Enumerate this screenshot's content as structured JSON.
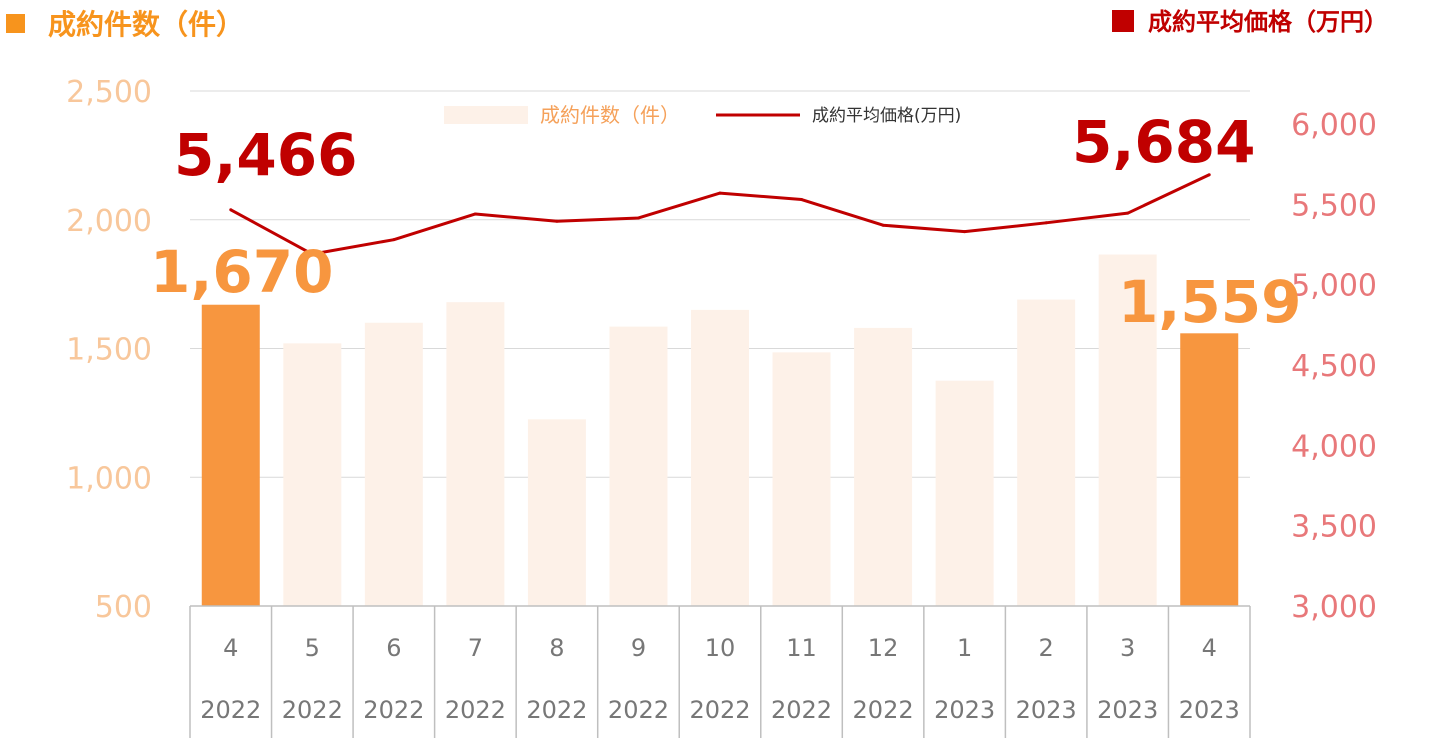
{
  "chart_data": {
    "type": "bar",
    "titles": {
      "left_axis": "成約件数（件）",
      "right_axis": "成約平均価格（万円）"
    },
    "legend": {
      "bar_label": "成約件数（件）",
      "line_label": "成約平均価格(万円)",
      "placement": "top-center"
    },
    "categories": [
      {
        "month": "4",
        "year": "2022"
      },
      {
        "month": "5",
        "year": "2022"
      },
      {
        "month": "6",
        "year": "2022"
      },
      {
        "month": "7",
        "year": "2022"
      },
      {
        "month": "8",
        "year": "2022"
      },
      {
        "month": "9",
        "year": "2022"
      },
      {
        "month": "10",
        "year": "2022"
      },
      {
        "month": "11",
        "year": "2022"
      },
      {
        "month": "12",
        "year": "2022"
      },
      {
        "month": "1",
        "year": "2023"
      },
      {
        "month": "2",
        "year": "2023"
      },
      {
        "month": "3",
        "year": "2023"
      },
      {
        "month": "4",
        "year": "2023"
      }
    ],
    "series": [
      {
        "name": "成約件数（件）",
        "type": "bar",
        "axis": "left",
        "values": [
          1670,
          1520,
          1600,
          1680,
          1225,
          1585,
          1650,
          1485,
          1580,
          1375,
          1690,
          1865,
          1559
        ],
        "highlight_indices": [
          0,
          12
        ]
      },
      {
        "name": "成約平均価格(万円)",
        "type": "line",
        "axis": "right",
        "values": [
          5466,
          5190,
          5280,
          5440,
          5395,
          5415,
          5570,
          5530,
          5370,
          5330,
          5385,
          5445,
          5684
        ]
      }
    ],
    "data_labels": {
      "line_first": "5,466",
      "line_last": "5,684",
      "bar_first": "1,670",
      "bar_last": "1,559"
    },
    "left_axis": {
      "min": 500,
      "max": 2500,
      "ticks": [
        "500",
        "1,000",
        "1,500",
        "2,000",
        "2,500"
      ],
      "tick_values": [
        500,
        1000,
        1500,
        2000,
        2500
      ]
    },
    "right_axis": {
      "min": 3000,
      "max": 6000,
      "ticks": [
        "3,000",
        "3,500",
        "4,000",
        "4,500",
        "5,000",
        "5,500",
        "6,000"
      ],
      "tick_values": [
        3000,
        3500,
        4000,
        4500,
        5000,
        5500,
        6000
      ]
    },
    "grid": true,
    "colors": {
      "bar_highlight": "#f7963f",
      "bar_muted": "#fdf1e8",
      "line": "#c00000",
      "left_axis_text": "#f8c79b",
      "right_axis_text": "#e8787a",
      "title_left": "#f7941d",
      "title_right": "#c00000"
    }
  }
}
